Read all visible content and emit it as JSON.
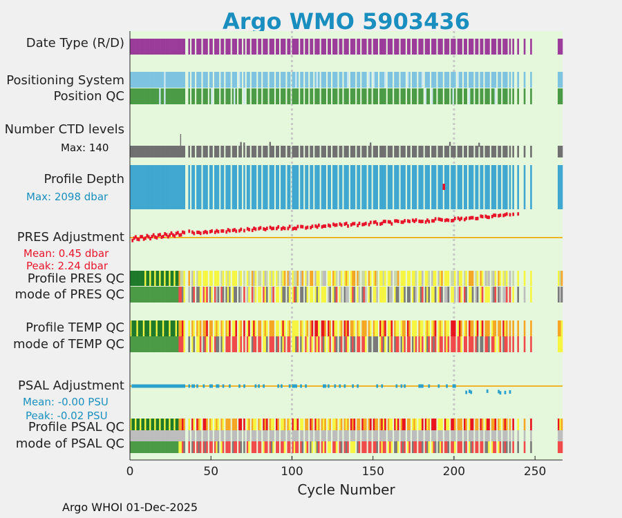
{
  "title": "Argo WMO 5903436",
  "footer": "Argo WHOI 01-Dec-2025",
  "rows": {
    "date_type": "Date Type (R/D)",
    "positioning_system": "Positioning System",
    "position_qc": "Position QC",
    "n_ctd_levels": "Number CTD levels",
    "profile_depth": "Profile Depth",
    "pres_adjustment": "PRES Adjustment",
    "profile_pres_qc": "Profile PRES QC",
    "mode_pres_qc": "mode of PRES QC",
    "profile_temp_qc": "Profile TEMP QC",
    "mode_temp_qc": "mode of TEMP QC",
    "psal_adjustment": "PSAL Adjustment",
    "profile_psal_qc": "Profile PSAL QC",
    "mode_psal_qc": "mode of PSAL QC"
  },
  "stats": {
    "ctd_max": "Max: 140",
    "depth_max": "Max: 2098 dbar",
    "pres_mean": "Mean: 0.45 dbar",
    "pres_peak": "Peak: 2.24 dbar",
    "psal_mean": "Mean: -0.00 PSU",
    "psal_peak": "Peak: -0.02 PSU"
  },
  "colors": {
    "background": "#e6f8dc",
    "title": "#1a8fbf",
    "date_type": "#9c3c9a",
    "positioning": "#7ec4e0",
    "qc_good": "#4a9a46",
    "qc_dark_green": "#1e7a2a",
    "qc_yellow": "#f5f542",
    "qc_orange": "#f5a623",
    "qc_red": "#e8141e",
    "qc_grey": "#7a7a7a",
    "qc_light_grey": "#bdbdbd",
    "mode_red": "#f04a4a",
    "ctd_bar": "#707070",
    "depth": "#40a8d0",
    "pres_adj": "#e8142a",
    "psal_adj": "#2aa0cc",
    "zero_line": "#f0b429",
    "grid": "#c8c8c8",
    "stat_blue": "#1a8fbf",
    "stat_red": "#e8142a"
  },
  "chart_data": {
    "type": "status-strip-timeline",
    "title": "Argo WMO 5903436",
    "xlabel": "Cycle Number",
    "xlim": [
      0,
      267
    ],
    "xticks": [
      0,
      50,
      100,
      150,
      200,
      250
    ],
    "vertical_gridlines_at": [
      100,
      200
    ],
    "series": [
      {
        "name": "Date Type (R/D)",
        "kind": "category-strip",
        "note": "mostly delayed-mode (D) with intermittent gaps after cycle 37"
      },
      {
        "name": "Positioning System",
        "kind": "category-strip"
      },
      {
        "name": "Position QC",
        "kind": "category-strip",
        "note": "QC flag 1 (good) for most cycles"
      },
      {
        "name": "Number CTD levels",
        "kind": "bar",
        "max": 140
      },
      {
        "name": "Profile Depth",
        "kind": "bar",
        "max_dbar": 2098
      },
      {
        "name": "PRES Adjustment",
        "kind": "line",
        "mean_dbar": 0.45,
        "peak_dbar": 2.24
      },
      {
        "name": "Profile PRES QC",
        "kind": "category-strip"
      },
      {
        "name": "mode of PRES QC",
        "kind": "category-strip"
      },
      {
        "name": "Profile TEMP QC",
        "kind": "category-strip"
      },
      {
        "name": "mode of TEMP QC",
        "kind": "category-strip"
      },
      {
        "name": "PSAL Adjustment",
        "kind": "line",
        "mean_psu": -0.0,
        "peak_psu": -0.02
      },
      {
        "name": "Profile PSAL QC",
        "kind": "category-strip"
      },
      {
        "name": "mode of PSAL QC",
        "kind": "category-strip"
      }
    ],
    "gap_cycles": [
      34,
      35,
      37,
      40,
      44,
      48,
      51,
      55,
      58,
      62,
      66,
      69,
      71,
      74,
      78,
      81,
      85,
      89,
      92,
      96,
      99,
      104,
      107,
      110,
      113,
      117,
      121,
      124,
      128,
      131,
      135,
      139,
      142,
      146,
      149,
      153,
      158,
      162,
      166,
      170,
      173,
      177,
      181,
      185,
      189,
      193,
      197,
      201,
      205,
      208,
      212,
      215,
      218,
      222,
      226,
      229,
      233,
      235,
      237,
      238,
      240,
      241,
      242,
      244,
      245,
      246,
      248,
      249,
      250,
      251,
      252,
      253,
      254,
      255,
      256,
      257,
      258,
      259,
      260,
      261,
      262,
      263
    ]
  }
}
